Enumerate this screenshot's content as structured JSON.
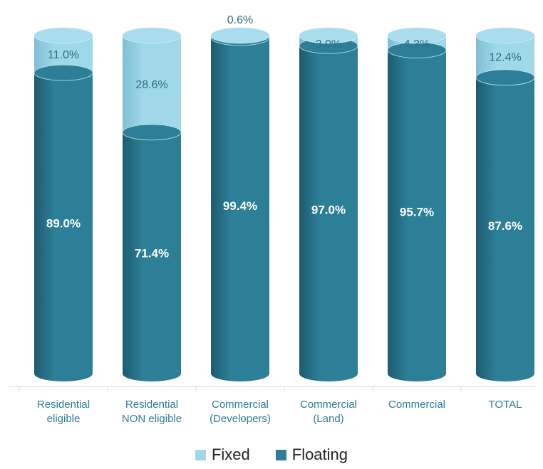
{
  "colors": {
    "floating": "#2d7f98",
    "floating_dark": "#1d5c70",
    "fixed": "#9fd8e9",
    "fixed_dark": "#7fbfd3",
    "top_cap": "#a9dded",
    "category_text": "#2e7d99"
  },
  "chart_data": {
    "type": "bar",
    "stacked": true,
    "percent": true,
    "categories": [
      "Residential eligible",
      "Residential NON eligible",
      "Commercial (Developers)",
      "Commercial (Land)",
      "Commercial",
      "TOTAL"
    ],
    "category_lines": [
      [
        "Residential",
        "eligible"
      ],
      [
        "Residential",
        "NON eligible"
      ],
      [
        "Commercial",
        "(Developers)"
      ],
      [
        "Commercial",
        "(Land)"
      ],
      [
        "Commercial",
        ""
      ],
      [
        "TOTAL",
        ""
      ]
    ],
    "series": [
      {
        "name": "Floating",
        "values": [
          89.0,
          71.4,
          99.4,
          97.0,
          95.7,
          87.6
        ],
        "labels": [
          "89.0%",
          "71.4%",
          "99.4%",
          "97.0%",
          "95.7%",
          "87.6%"
        ]
      },
      {
        "name": "Fixed",
        "values": [
          11.0,
          28.6,
          0.6,
          3.0,
          4.3,
          12.4
        ],
        "labels": [
          "11.0%",
          "28.6%",
          "0.6%",
          "3.0%",
          "4.3%",
          "12.4%"
        ]
      }
    ],
    "ylim": [
      0,
      100
    ],
    "legend": {
      "position": "bottom",
      "items": [
        "Fixed",
        "Floating"
      ]
    }
  }
}
